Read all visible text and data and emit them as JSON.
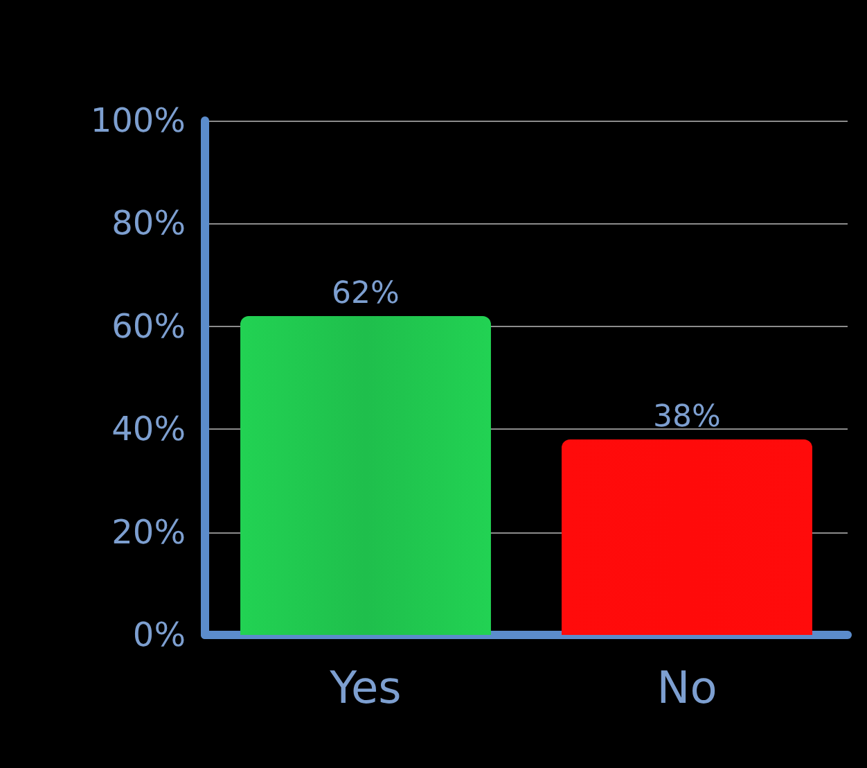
{
  "chart_data": {
    "type": "bar",
    "categories": [
      "Yes",
      "No"
    ],
    "values": [
      62,
      38
    ],
    "colors": [
      "#1fbf4c",
      "#ff0a0a"
    ],
    "value_labels": [
      "62%",
      "38%"
    ],
    "ylim": [
      0,
      100
    ],
    "yticks": [
      {
        "value": 0,
        "label": "0%"
      },
      {
        "value": 20,
        "label": "20%"
      },
      {
        "value": 40,
        "label": "40%"
      },
      {
        "value": 60,
        "label": "60%"
      },
      {
        "value": 80,
        "label": "80%"
      },
      {
        "value": 100,
        "label": "100%"
      }
    ],
    "grid": "y"
  }
}
